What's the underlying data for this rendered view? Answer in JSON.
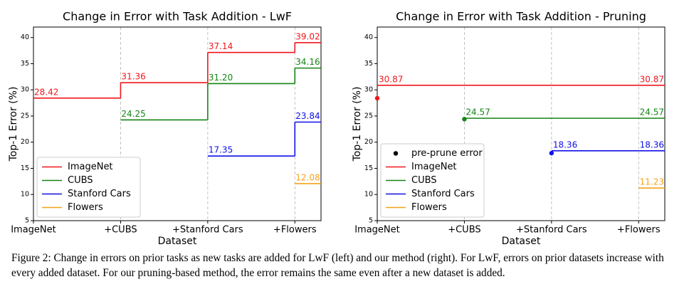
{
  "chart_data": [
    {
      "type": "step",
      "title": "Change in Error with Task Addition - LwF",
      "x_label": "Dataset",
      "y_label": "Top-1 Error (%)",
      "categories": [
        "ImageNet",
        "+CUBS",
        "+Stanford Cars",
        "+Flowers"
      ],
      "ylim": [
        5,
        42
      ],
      "yticks": [
        5,
        10,
        15,
        20,
        25,
        30,
        35,
        40
      ],
      "grid": "x",
      "legend": "lower left",
      "labels": "steps",
      "series": [
        {
          "name": "ImageNet",
          "color": "#f0161c",
          "values": [
            28.42,
            31.36,
            37.14,
            39.02
          ],
          "value_labels": [
            "28.42",
            "31.36",
            "37.14",
            "39.02"
          ]
        },
        {
          "name": "CUBS",
          "color": "#148414",
          "values": [
            null,
            24.25,
            31.2,
            34.16
          ],
          "value_labels": [
            null,
            "24.25",
            "31.20",
            "34.16"
          ]
        },
        {
          "name": "Stanford Cars",
          "color": "#1010e8",
          "values": [
            null,
            null,
            17.35,
            23.84
          ],
          "value_labels": [
            null,
            null,
            "17.35",
            "23.84"
          ]
        },
        {
          "name": "Flowers",
          "color": "#f5a21a",
          "values": [
            null,
            null,
            null,
            12.08
          ],
          "value_labels": [
            null,
            null,
            null,
            "12.08"
          ]
        }
      ]
    },
    {
      "type": "step",
      "title": "Change in Error with Task Addition - Pruning",
      "x_label": "Dataset",
      "y_label": "Top-1 Error (%)",
      "categories": [
        "ImageNet",
        "+CUBS",
        "+Stanford Cars",
        "+Flowers"
      ],
      "ylim": [
        5,
        42
      ],
      "yticks": [
        5,
        10,
        15,
        20,
        25,
        30,
        35,
        40
      ],
      "grid": "x",
      "legend": "lower left",
      "labels": "ends",
      "series": [
        {
          "name": "pre-prune error",
          "marker": "dot",
          "color": "#000000",
          "values": [
            28.4,
            24.4,
            17.9,
            null
          ]
        },
        {
          "name": "ImageNet",
          "color": "#f0161c",
          "values": [
            30.87,
            30.87,
            30.87,
            30.87
          ]
        },
        {
          "name": "CUBS",
          "color": "#148414",
          "values": [
            null,
            24.57,
            24.57,
            24.57
          ]
        },
        {
          "name": "Stanford Cars",
          "color": "#1010e8",
          "values": [
            null,
            null,
            18.36,
            18.36
          ]
        },
        {
          "name": "Flowers",
          "color": "#f5a21a",
          "values": [
            null,
            null,
            null,
            11.23
          ]
        }
      ]
    }
  ],
  "caption": "Figure 2: Change in errors on prior tasks as new tasks are added for LwF (left) and our method (right). For LwF, errors on prior datasets increase with every added dataset. For our pruning-based method, the error remains the same even after a new dataset is added."
}
